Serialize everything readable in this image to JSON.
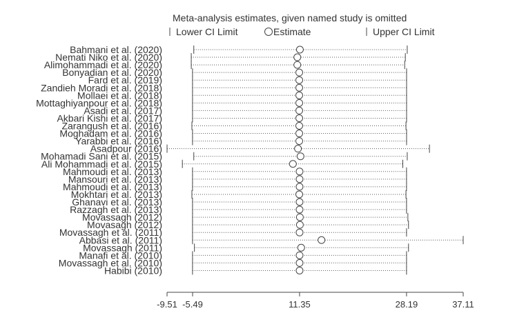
{
  "chart_data": {
    "type": "forest",
    "title": "Meta-analysis estimates, given named study is omitted",
    "legend": {
      "lower": "Lower CI Limit",
      "estimate": "Estimate",
      "upper": "Upper CI Limit"
    },
    "x_ticks": [
      -9.51,
      -5.49,
      11.35,
      28.19,
      37.11
    ],
    "x_tick_labels": [
      "-9.51",
      "-5.49",
      "11.35",
      "28.19",
      "37.11"
    ],
    "xlim": [
      -9.51,
      37.11
    ],
    "grid": false,
    "studies": [
      {
        "name": "Bahmani et al. (2020)",
        "lower": -5.3,
        "estimate": 11.4,
        "upper": 28.3
      },
      {
        "name": "Nemati Niko et al. (2020)",
        "lower": -5.7,
        "estimate": 11.0,
        "upper": 28.0
      },
      {
        "name": "Alimohammadi et al. (2020)",
        "lower": -5.7,
        "estimate": 11.0,
        "upper": 27.9
      },
      {
        "name": "Bonyadian et al. (2020)",
        "lower": -5.5,
        "estimate": 11.3,
        "upper": 28.2
      },
      {
        "name": "Fard et al. (2019)",
        "lower": -5.5,
        "estimate": 11.3,
        "upper": 28.2
      },
      {
        "name": "Zandieh Moradi et al. (2018)",
        "lower": -5.5,
        "estimate": 11.3,
        "upper": 28.2
      },
      {
        "name": "Mollaei et al. (2018)",
        "lower": -5.5,
        "estimate": 11.3,
        "upper": 28.2
      },
      {
        "name": "Mottaghiyanpour et al. (2018)",
        "lower": -5.5,
        "estimate": 11.3,
        "upper": 28.2
      },
      {
        "name": "Asadi et al. (2017)",
        "lower": -5.5,
        "estimate": 11.3,
        "upper": 28.2
      },
      {
        "name": "Akbari Kishi et al. (2017)",
        "lower": -5.5,
        "estimate": 11.3,
        "upper": 28.2
      },
      {
        "name": "Zarangush et al. (2016)",
        "lower": -5.6,
        "estimate": 11.3,
        "upper": 28.1
      },
      {
        "name": "Moghadam et al. (2016)",
        "lower": -5.5,
        "estimate": 11.3,
        "upper": 28.2
      },
      {
        "name": "Yarabbi et al. (2016)",
        "lower": -5.5,
        "estimate": 11.3,
        "upper": 28.2
      },
      {
        "name": "Asadpour  (2016)",
        "lower": -9.51,
        "estimate": 11.1,
        "upper": 31.8
      },
      {
        "name": "Mohamadi Sani et al. (2015)",
        "lower": -5.3,
        "estimate": 11.5,
        "upper": 28.3
      },
      {
        "name": "Ali Mohammadi et al. (2015)",
        "lower": -7.1,
        "estimate": 10.3,
        "upper": 27.6
      },
      {
        "name": "Mahmoudi et al. (2013)",
        "lower": -5.5,
        "estimate": 11.35,
        "upper": 28.19
      },
      {
        "name": "Mansouri et al. (2013)",
        "lower": -5.5,
        "estimate": 11.35,
        "upper": 28.19
      },
      {
        "name": "Mahmoudi et al. (2013)",
        "lower": -5.5,
        "estimate": 11.35,
        "upper": 28.19
      },
      {
        "name": "Mokhtari et al. (2013)",
        "lower": -5.6,
        "estimate": 11.3,
        "upper": 28.1
      },
      {
        "name": "Ghanavi et al. (2013)",
        "lower": -5.5,
        "estimate": 11.35,
        "upper": 28.19
      },
      {
        "name": "Razzagh et al. (2013)",
        "lower": -5.5,
        "estimate": 11.35,
        "upper": 28.19
      },
      {
        "name": "Movassagh (2012)",
        "lower": -5.5,
        "estimate": 11.4,
        "upper": 28.4
      },
      {
        "name": "Movasagh (2012)",
        "lower": -5.5,
        "estimate": 11.4,
        "upper": 28.5
      },
      {
        "name": "Movassagh et al. (2011)",
        "lower": -5.5,
        "estimate": 11.35,
        "upper": 28.19
      },
      {
        "name": "Abbasi  et al. (2011)",
        "lower": -5.5,
        "estimate": 14.8,
        "upper": 37.11
      },
      {
        "name": "Movassagh (2011)",
        "lower": -5.2,
        "estimate": 11.6,
        "upper": 28.5
      },
      {
        "name": "Manafi et al. (2010)",
        "lower": -5.5,
        "estimate": 11.35,
        "upper": 28.19
      },
      {
        "name": "Movassagh  et al. (2010)",
        "lower": -5.5,
        "estimate": 11.35,
        "upper": 28.19
      },
      {
        "name": "Habibi (2010)",
        "lower": -5.5,
        "estimate": 11.35,
        "upper": 28.19
      }
    ]
  }
}
